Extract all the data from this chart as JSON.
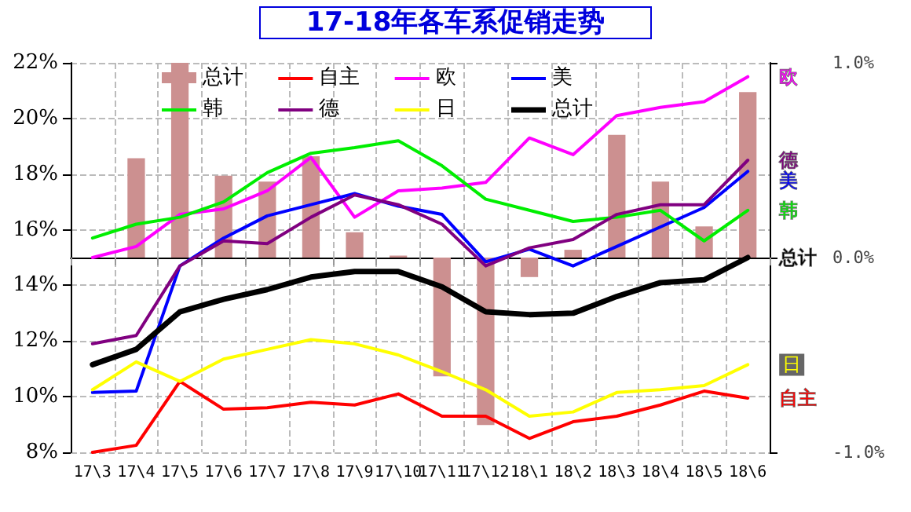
{
  "chart_data": {
    "type": "line",
    "title": "17-18年各车系促销走势",
    "categories": [
      "17\\3",
      "17\\4",
      "17\\5",
      "17\\6",
      "17\\7",
      "17\\8",
      "17\\9",
      "17\\10",
      "17\\11",
      "17\\12",
      "18\\1",
      "18\\2",
      "18\\3",
      "18\\4",
      "18\\5",
      "18\\6"
    ],
    "series": [
      {
        "name": "总计",
        "type": "bar",
        "axis": "y2",
        "color": "#cc9090",
        "values": [
          null,
          0.51,
          1.0,
          0.42,
          0.39,
          0.52,
          0.13,
          0.01,
          -0.61,
          -0.86,
          -0.1,
          0.04,
          0.63,
          0.39,
          0.16,
          0.85
        ]
      },
      {
        "name": "自主",
        "color": "#ff0000",
        "values": [
          8.0,
          8.25,
          10.55,
          9.55,
          9.6,
          9.8,
          9.7,
          10.1,
          9.3,
          9.3,
          8.5,
          9.1,
          9.3,
          9.7,
          10.2,
          9.95
        ]
      },
      {
        "name": "欧",
        "color": "#ff00ff",
        "values": [
          15.0,
          15.4,
          16.55,
          16.75,
          17.4,
          18.6,
          16.45,
          17.4,
          17.5,
          17.7,
          19.3,
          18.7,
          20.1,
          20.4,
          20.6,
          21.5
        ]
      },
      {
        "name": "美",
        "color": "#0000ff",
        "values": [
          10.15,
          10.2,
          14.7,
          15.7,
          16.5,
          16.9,
          17.3,
          16.85,
          16.55,
          14.85,
          15.3,
          14.7,
          15.4,
          16.1,
          16.8,
          18.1
        ]
      },
      {
        "name": "韩",
        "color": "#00ee00",
        "values": [
          15.7,
          16.2,
          16.45,
          17.0,
          18.05,
          18.75,
          18.95,
          19.2,
          18.3,
          17.1,
          16.7,
          16.3,
          16.45,
          16.7,
          15.6,
          16.7
        ]
      },
      {
        "name": "德",
        "color": "#800080",
        "values": [
          11.9,
          12.2,
          14.7,
          15.6,
          15.5,
          16.45,
          17.25,
          16.9,
          16.2,
          14.7,
          15.35,
          15.65,
          16.55,
          16.9,
          16.9,
          18.5
        ]
      },
      {
        "name": "日",
        "color": "#ffff00",
        "values": [
          10.25,
          11.25,
          10.55,
          11.35,
          11.7,
          12.05,
          11.9,
          11.5,
          10.9,
          10.25,
          9.3,
          9.45,
          10.15,
          10.25,
          10.4,
          11.15
        ]
      },
      {
        "name": "总计",
        "color": "#000000",
        "values": [
          11.15,
          11.7,
          13.05,
          13.5,
          13.85,
          14.3,
          14.5,
          14.5,
          13.95,
          13.05,
          12.95,
          13.0,
          13.6,
          14.1,
          14.2,
          15.0
        ]
      }
    ],
    "ylim": [
      8,
      22
    ],
    "yticks": [
      {
        "value": 8,
        "label": "8%"
      },
      {
        "value": 10,
        "label": "10%"
      },
      {
        "value": 12,
        "label": "12%"
      },
      {
        "value": 14,
        "label": "14%"
      },
      {
        "value": 16,
        "label": "16%"
      },
      {
        "value": 18,
        "label": "18%"
      },
      {
        "value": 20,
        "label": "20%"
      },
      {
        "value": 22,
        "label": "22%"
      }
    ],
    "y2lim": [
      -1,
      1
    ],
    "y2ticks": [
      {
        "value": -1,
        "label": "-1.0%"
      },
      {
        "value": 0,
        "label": "0.0%"
      },
      {
        "value": 1,
        "label": "1.0%"
      }
    ],
    "grid": true,
    "legend": "top",
    "marker": "none",
    "line_style": "solid"
  }
}
